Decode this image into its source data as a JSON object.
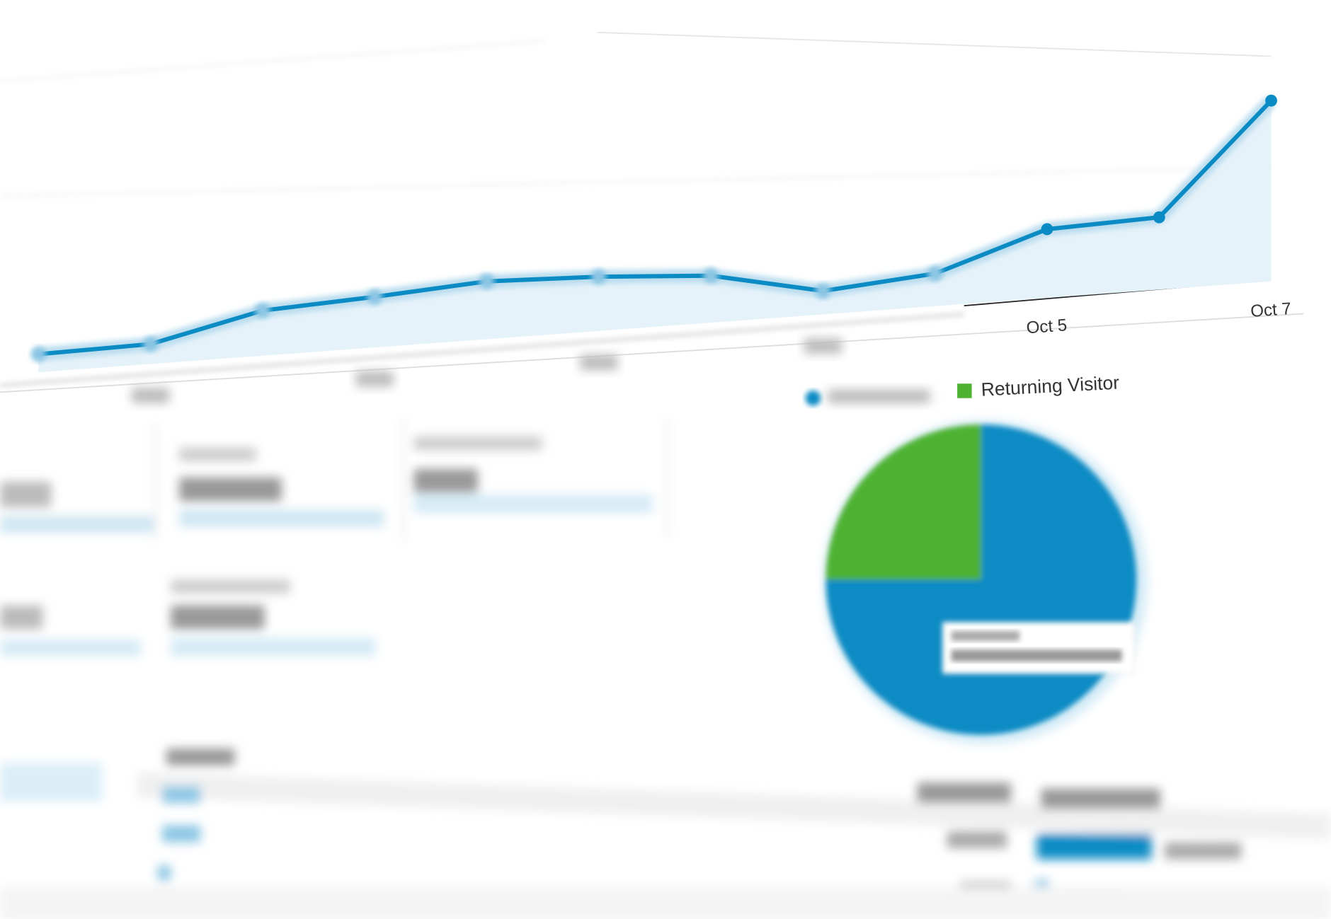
{
  "chart_data": [
    {
      "type": "line",
      "categories": [
        null,
        null,
        null,
        null,
        null,
        null,
        null,
        null,
        null,
        "Oct 5",
        null,
        "Oct 7"
      ],
      "series": [
        {
          "name": null,
          "color": "#0a8bc4",
          "values": [
            10,
            11,
            25,
            28,
            32,
            30,
            26,
            13,
            18,
            38,
            40,
            100
          ]
        }
      ]
    },
    {
      "type": "pie",
      "categories": [
        null,
        "Returning Visitor"
      ],
      "values": [
        75,
        25
      ],
      "colors": [
        "#0a8bc4",
        "#4eb233"
      ]
    }
  ]
}
